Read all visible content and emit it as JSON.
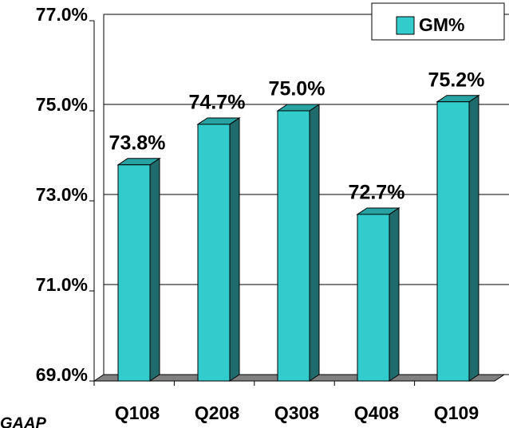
{
  "chart_data": {
    "type": "bar",
    "categories": [
      "Q108",
      "Q208",
      "Q308",
      "Q408",
      "Q109"
    ],
    "series": [
      {
        "name": "GM%",
        "color": "#33cccc",
        "values": [
          73.8,
          74.7,
          75.0,
          72.7,
          75.2
        ],
        "value_labels": [
          "73.8%",
          "74.7%",
          "75.0%",
          "72.7%",
          "75.2%"
        ]
      }
    ],
    "ylim": [
      69,
      77
    ],
    "yticks": [
      {
        "value": 69,
        "label": "69.0%"
      },
      {
        "value": 71,
        "label": "71.0%"
      },
      {
        "value": 73,
        "label": "73.0%"
      },
      {
        "value": 75,
        "label": "75.0%"
      },
      {
        "value": 77,
        "label": "77.0%"
      }
    ],
    "grid": true,
    "legend": "top-right",
    "footnote": "GAAP"
  }
}
